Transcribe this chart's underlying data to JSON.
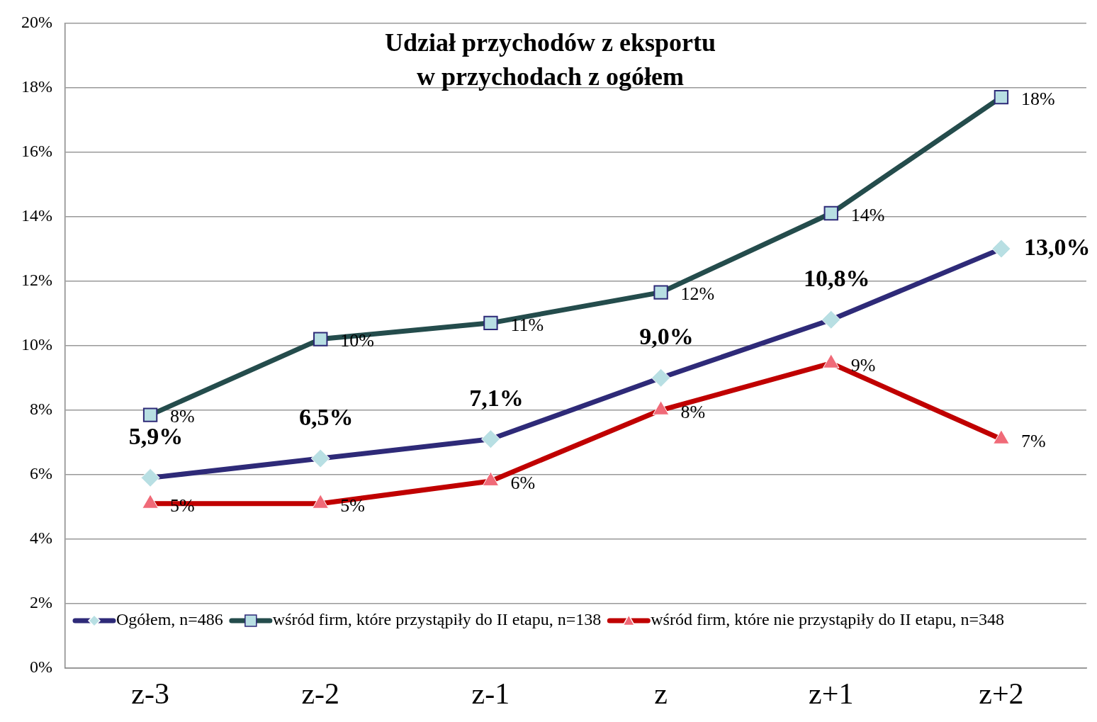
{
  "chart_data": {
    "type": "line",
    "title": "Udział przychodów z eksportu\nw przychodach z ogółem",
    "categories": [
      "z-3",
      "z-2",
      "z-1",
      "z",
      "z+1",
      "z+2"
    ],
    "series": [
      {
        "name": "Ogółem, n=486",
        "color": "#2e2a78",
        "marker": "diamond",
        "values": [
          5.9,
          6.5,
          7.1,
          9.0,
          10.8,
          13.0
        ],
        "value_labels": [
          "5,9%",
          "6,5%",
          "7,1%",
          "9,0%",
          "10,8%",
          "13,0%"
        ]
      },
      {
        "name": "wśród firm, które przystąpiły do II etapu, n=138",
        "color": "#244c4c",
        "marker": "square",
        "values": [
          7.85,
          10.2,
          10.7,
          11.65,
          14.1,
          17.7
        ],
        "value_labels": [
          "8%",
          "10%",
          "11%",
          "12%",
          "14%",
          "18%"
        ]
      },
      {
        "name": "wśród firm, które nie przystąpiły do II etapu, n=348",
        "color": "#c00000",
        "marker": "triangle",
        "values": [
          5.1,
          5.1,
          5.8,
          8.0,
          9.45,
          7.1
        ],
        "value_labels": [
          "5%",
          "5%",
          "6%",
          "8%",
          "9%",
          "7%"
        ]
      }
    ],
    "ylim": [
      0,
      20
    ],
    "yticks": [
      {
        "value": 0,
        "label": "0%"
      },
      {
        "value": 2,
        "label": "2%"
      },
      {
        "value": 4,
        "label": "4%"
      },
      {
        "value": 6,
        "label": "6%"
      },
      {
        "value": 8,
        "label": "8%"
      },
      {
        "value": 10,
        "label": "10%"
      },
      {
        "value": 12,
        "label": "12%"
      },
      {
        "value": 14,
        "label": "14%"
      },
      {
        "value": 16,
        "label": "16%"
      },
      {
        "value": 18,
        "label": "18%"
      },
      {
        "value": 20,
        "label": "20%"
      }
    ],
    "grid": "y",
    "legend": "bottom"
  }
}
